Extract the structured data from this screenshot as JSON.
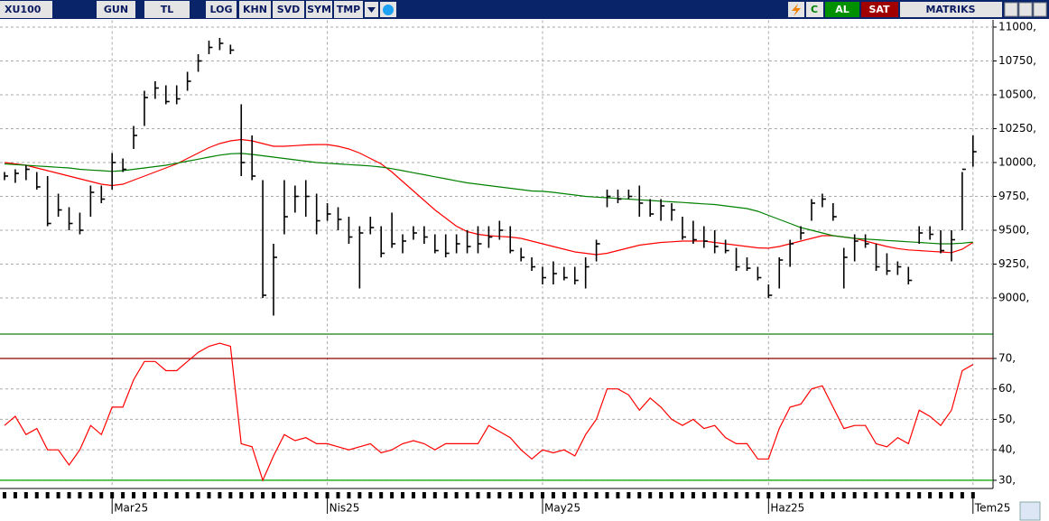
{
  "toolbar": {
    "symbol": "XU100",
    "buttons": [
      "GUN",
      "TL",
      "LOG",
      "KHN",
      "SVD",
      "SYM",
      "TMP"
    ],
    "c": "C",
    "buy": "AL",
    "sell": "SAT",
    "brand": "MATRIKS"
  },
  "chart_data": [
    {
      "type": "ohlc",
      "color": "#000000",
      "grid": true,
      "categories": [
        null,
        null,
        null,
        null,
        null,
        null,
        null,
        null,
        null,
        null,
        "Mar25",
        null,
        null,
        null,
        null,
        null,
        null,
        null,
        null,
        null,
        null,
        null,
        null,
        null,
        null,
        null,
        null,
        null,
        null,
        null,
        "Nis25",
        null,
        null,
        null,
        null,
        null,
        null,
        null,
        null,
        null,
        null,
        null,
        null,
        null,
        null,
        null,
        null,
        null,
        null,
        null,
        "May25",
        null,
        null,
        null,
        null,
        null,
        null,
        null,
        null,
        null,
        null,
        null,
        null,
        null,
        null,
        null,
        null,
        null,
        null,
        null,
        null,
        "Haz25",
        null,
        null,
        null,
        null,
        null,
        null,
        null,
        null,
        null,
        null,
        null,
        null,
        null,
        null,
        null,
        null,
        null,
        null,
        "Tem25"
      ],
      "high": [
        9930,
        9950,
        9980,
        9930,
        9900,
        9770,
        9670,
        9630,
        9830,
        9830,
        10070,
        10030,
        10270,
        10530,
        10600,
        10570,
        10570,
        10670,
        10800,
        10900,
        10920,
        10870,
        10430,
        10200,
        9870,
        9400,
        9870,
        9830,
        9870,
        9770,
        9700,
        9670,
        9600,
        9530,
        9600,
        9530,
        9630,
        9470,
        9530,
        9530,
        9470,
        9470,
        9470,
        9500,
        9530,
        9530,
        9570,
        9530,
        9370,
        9300,
        9230,
        9270,
        9230,
        9230,
        9300,
        9430,
        9800,
        9800,
        9800,
        9830,
        9730,
        9730,
        9700,
        9600,
        9570,
        9530,
        9500,
        9430,
        9370,
        9300,
        9230,
        9100,
        9300,
        9430,
        9530,
        9730,
        9770,
        9700,
        9370,
        9470,
        9470,
        9400,
        9330,
        9270,
        9230,
        9530,
        9530,
        9500,
        9500,
        9930,
        10200
      ],
      "low": [
        9870,
        9850,
        9870,
        9800,
        9530,
        9600,
        9500,
        9470,
        9600,
        9700,
        9800,
        9930,
        10100,
        10270,
        10470,
        10430,
        10430,
        10530,
        10670,
        10800,
        10830,
        10800,
        9900,
        9870,
        9000,
        8870,
        9470,
        9630,
        9600,
        9470,
        9570,
        9500,
        9400,
        9070,
        9470,
        9300,
        9370,
        9330,
        9430,
        9400,
        9330,
        9300,
        9330,
        9330,
        9330,
        9370,
        9430,
        9330,
        9270,
        9200,
        9100,
        9100,
        9130,
        9100,
        9070,
        9270,
        9670,
        9700,
        9730,
        9600,
        9600,
        9570,
        9570,
        9430,
        9400,
        9370,
        9330,
        9330,
        9200,
        9200,
        9130,
        9000,
        9070,
        9230,
        9430,
        9570,
        9670,
        9570,
        9070,
        9270,
        9370,
        9200,
        9170,
        9170,
        9100,
        9400,
        9430,
        9330,
        9270,
        9500,
        9970
      ],
      "close": [
        9900,
        9920,
        9950,
        9820,
        9550,
        9650,
        9550,
        9500,
        9780,
        9730,
        10000,
        9950,
        10200,
        10480,
        10550,
        10450,
        10470,
        10600,
        10750,
        10850,
        10880,
        10830,
        10000,
        9900,
        9020,
        9300,
        9600,
        9750,
        9750,
        9570,
        9620,
        9580,
        9450,
        9480,
        9520,
        9330,
        9400,
        9420,
        9480,
        9450,
        9350,
        9330,
        9400,
        9380,
        9400,
        9450,
        9500,
        9350,
        9300,
        9230,
        9150,
        9180,
        9150,
        9130,
        9230,
        9400,
        9750,
        9730,
        9750,
        9700,
        9620,
        9680,
        9650,
        9450,
        9430,
        9420,
        9380,
        9350,
        9230,
        9220,
        9150,
        9020,
        9280,
        9400,
        9480,
        9700,
        9730,
        9600,
        9300,
        9420,
        9400,
        9230,
        9200,
        9230,
        9130,
        9480,
        9470,
        9350,
        9430,
        9950,
        10080
      ],
      "series": [
        {
          "color": "#ff0000",
          "values": [
            10000,
            9990,
            9980,
            9960,
            9940,
            9920,
            9900,
            9880,
            9860,
            9840,
            9830,
            9840,
            9870,
            9900,
            9930,
            9960,
            9990,
            10030,
            10070,
            10110,
            10140,
            10160,
            10170,
            10160,
            10140,
            10120,
            10120,
            10125,
            10130,
            10133,
            10133,
            10120,
            10100,
            10070,
            10030,
            9990,
            9930,
            9860,
            9790,
            9720,
            9650,
            9590,
            9530,
            9490,
            9470,
            9460,
            9455,
            9450,
            9440,
            9420,
            9400,
            9380,
            9360,
            9340,
            9330,
            9320,
            9330,
            9350,
            9370,
            9390,
            9400,
            9410,
            9415,
            9420,
            9420,
            9420,
            9410,
            9400,
            9390,
            9380,
            9370,
            9367,
            9380,
            9400,
            9420,
            9440,
            9460,
            9460,
            9450,
            9440,
            9420,
            9400,
            9380,
            9365,
            9355,
            9350,
            9345,
            9340,
            9335,
            9360,
            9410
          ]
        },
        {
          "color": "#008000",
          "values": [
            9990,
            9985,
            9980,
            9975,
            9970,
            9965,
            9960,
            9950,
            9945,
            9940,
            9935,
            9940,
            9950,
            9960,
            9970,
            9980,
            9995,
            10010,
            10025,
            10040,
            10055,
            10065,
            10067,
            10060,
            10050,
            10040,
            10030,
            10020,
            10010,
            10000,
            9995,
            9990,
            9985,
            9980,
            9975,
            9967,
            9955,
            9940,
            9925,
            9910,
            9895,
            9880,
            9865,
            9850,
            9840,
            9830,
            9820,
            9810,
            9800,
            9790,
            9787,
            9780,
            9770,
            9760,
            9750,
            9745,
            9740,
            9735,
            9730,
            9725,
            9720,
            9715,
            9710,
            9705,
            9700,
            9695,
            9690,
            9680,
            9670,
            9660,
            9640,
            9610,
            9580,
            9550,
            9520,
            9500,
            9480,
            9460,
            9450,
            9440,
            9435,
            9430,
            9425,
            9420,
            9415,
            9410,
            9405,
            9400,
            9400,
            9405,
            9413
          ]
        }
      ],
      "ylim": [
        8750,
        11050
      ],
      "yticks": [
        {
          "value": 9000,
          "label": "9000,"
        },
        {
          "value": 9250,
          "label": "9250,"
        },
        {
          "value": 9500,
          "label": "9500,"
        },
        {
          "value": 9750,
          "label": "9750,"
        },
        {
          "value": 10000,
          "label": "10000,"
        },
        {
          "value": 10250,
          "label": "10250,"
        },
        {
          "value": 10500,
          "label": "10500,"
        },
        {
          "value": 10750,
          "label": "10750,"
        },
        {
          "value": 11000,
          "label": "11000,"
        }
      ]
    },
    {
      "type": "line",
      "color": "#ff0000",
      "grid": true,
      "values": [
        48,
        51,
        45,
        47,
        40,
        40,
        35,
        40,
        48,
        45,
        54,
        54,
        63,
        69,
        69,
        66,
        66,
        69,
        72,
        74,
        75,
        74,
        42,
        41,
        30,
        38,
        45,
        43,
        44,
        42,
        42,
        41,
        40,
        41,
        42,
        39,
        40,
        42,
        43,
        42,
        40,
        42,
        42,
        42,
        42,
        48,
        46,
        44,
        40,
        37,
        40,
        39,
        40,
        38,
        45,
        50,
        60,
        60,
        58,
        53,
        57,
        54,
        50,
        48,
        50,
        47,
        48,
        44,
        42,
        42,
        37,
        37,
        47,
        54,
        55,
        60,
        61,
        54,
        47,
        48,
        48,
        42,
        41,
        44,
        42,
        53,
        51,
        48,
        53,
        66,
        68
      ],
      "hlines": [
        {
          "value": 70,
          "color": "#8b0000"
        },
        {
          "value": 30,
          "color": "#00a000"
        }
      ],
      "ylim": [
        27.6,
        77.4
      ],
      "yticks": [
        {
          "value": 30,
          "label": "30,"
        },
        {
          "value": 40,
          "label": "40,"
        },
        {
          "value": 50,
          "label": "50,"
        },
        {
          "value": 60,
          "label": "60,"
        },
        {
          "value": 70,
          "label": "70,"
        }
      ]
    }
  ]
}
